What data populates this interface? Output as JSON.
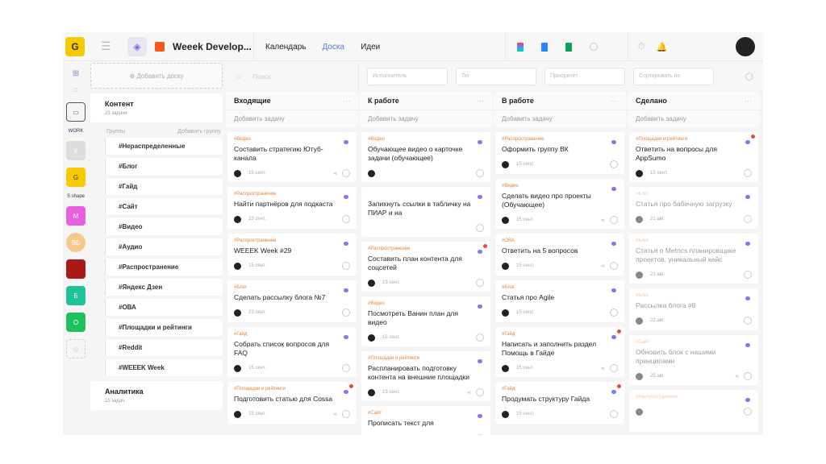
{
  "header": {
    "project_name": "Weeek Develop...",
    "nav": [
      "Календарь",
      "Доска",
      "Идеи"
    ],
    "active_nav": "Доска"
  },
  "boards": {
    "add_board": "Добавить доску",
    "board1": {
      "title": "Контент",
      "count": "23 задачи"
    },
    "groups_label": "Группы",
    "add_group": "Добавить группу",
    "groups": [
      "#Нераспределенные",
      "#Блог",
      "#Гайд",
      "#Сайт",
      "#Видео",
      "#Аудио",
      "#Распространение",
      "#Яндекс Дзен",
      "#ОВА",
      "#Площадки и рейтинги",
      "#Reddit",
      "#WEEEK Week"
    ],
    "board2": {
      "title": "Аналитика",
      "count": "15 задач"
    }
  },
  "rail": {
    "workspaces": [
      "WORK",
      "К",
      "G",
      "S shape",
      "М",
      "ВБ",
      "",
      "Б",
      "О"
    ]
  },
  "filters": {
    "search": "Поиск",
    "assignee": "Исполнитель",
    "tag": "Тег",
    "priority": "Приоритет",
    "sort": "Сортировать по"
  },
  "colors": {
    "accent": "#5a7ad8",
    "tag": "#e8823a",
    "priority": "#7b7ee8",
    "alert": "#e54b3c"
  },
  "columns": [
    {
      "title": "Входящие",
      "add": "Добавить задачу",
      "cards": [
        {
          "tag": "#Видео",
          "title": "Составить стратегию Ютуб-канала",
          "date": "15 сент.",
          "share": true
        },
        {
          "tag": "#Распространение",
          "title": "Найти партнёров для подкаста",
          "date": "23 сент."
        },
        {
          "tag": "#Распространение",
          "title": "WEEEK Week #29",
          "date": "15 сент."
        },
        {
          "tag": "#Блог",
          "title": "Сделать рассылку блога №7",
          "date": "23 сент."
        },
        {
          "tag": "#Гайд",
          "title": "Собрать список вопросов для FAQ",
          "date": "15 сент."
        },
        {
          "tag": "#Площадки и рейтинги",
          "title": "Подготовить статью для Cossa",
          "date": "23 сент.",
          "alert": true,
          "share": true
        }
      ]
    },
    {
      "title": "К работе",
      "add": "Добавить задачу",
      "cards": [
        {
          "tag": "#Видео",
          "title": "Обучающее видео о карточке задачи (обучающее)",
          "date": ""
        },
        {
          "tag": "",
          "title": "Запихнуть ссылки в табличку на ПИАР и на",
          "date": "",
          "noavatar": true
        },
        {
          "tag": "#Распространение",
          "title": "Составить план контента для соцсетей",
          "date": "15 сент.",
          "alert": true
        },
        {
          "tag": "#Видео",
          "title": "Посмотреть Ванин план для видео",
          "date": "15 сент."
        },
        {
          "tag": "#Площадки и рейтинги",
          "title": "Распланировать подготовку контента на внешние площадки",
          "date": "15 сент.",
          "share": true
        },
        {
          "tag": "#Сайт",
          "title": "Прописать текст для",
          "date": ""
        }
      ]
    },
    {
      "title": "В работе",
      "add": "Добавить задачу",
      "cards": [
        {
          "tag": "#Распространение",
          "title": "Оформить группу ВК",
          "date": "15 сент."
        },
        {
          "tag": "#Видео",
          "title": "Сделать видео про проекты (Обучающее)",
          "date": "15 сент.",
          "share": true
        },
        {
          "tag": "#ОВА",
          "title": "Ответить на 5 вопросов",
          "date": "15 сент.",
          "share": true
        },
        {
          "tag": "#Блог",
          "title": "Статья про Agile",
          "date": "15 сент."
        },
        {
          "tag": "#Гайд",
          "title": "Написать и заполнить раздел Помощь в Гайде",
          "date": "15 сент.",
          "share": true,
          "alert": true
        },
        {
          "tag": "#Гайд",
          "title": "Продумать структуру Гайда",
          "date": "15 сент.",
          "alert": true
        }
      ]
    },
    {
      "title": "Сделано",
      "add": "Добавить задачу",
      "cards": [
        {
          "tag": "#Площадки и рейтинги",
          "title": "Ответить на вопросы для AppSumo",
          "date": "15 сент.",
          "alert": true
        },
        {
          "tag": "#Блог",
          "title": "Статья про бабечную загрузку",
          "date": "21 авг.",
          "faded": true
        },
        {
          "tag": "#Блог",
          "title": "Статья о Metrics планировщике проектов, уникальный кейс",
          "date": "21 авг.",
          "faded": true
        },
        {
          "tag": "#Блог",
          "title": "Рассылка блога #8",
          "date": "22 авг.",
          "faded": true
        },
        {
          "tag": "#Сайт",
          "title": "Обновить блок с нашими принципами",
          "date": "25 авг.",
          "faded": true,
          "share": true
        },
        {
          "tag": "#Распространение",
          "title": "",
          "date": "",
          "faded": true
        }
      ]
    }
  ]
}
